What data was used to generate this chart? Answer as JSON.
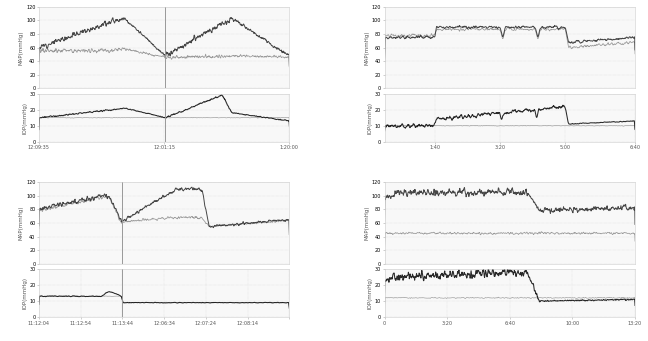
{
  "fig_width": 6.48,
  "fig_height": 3.41,
  "fig_dpi": 100,
  "bg_color": "#ffffff",
  "panel_bg": "#f8f8f8",
  "grid_color": "#d0d0d0",
  "grid_style": ":",
  "dark_line": "#333333",
  "mid_line": "#888888",
  "light_line": "#aaaaaa",
  "iop_dark": "#111111",
  "iop_light": "#888888",
  "ylabel_fontsize": 4,
  "tick_fontsize": 3.5,
  "vline_color": "#999999",
  "vline_lw": 0.7,
  "top_left": {
    "map_ylim": [
      0,
      120
    ],
    "map_yticks": [
      0,
      20,
      40,
      60,
      80,
      100,
      120
    ],
    "iop_ylim": [
      0,
      30
    ],
    "iop_yticks": [
      0,
      10,
      20,
      30
    ],
    "xticks": [
      0.0,
      0.5,
      1.0
    ],
    "xticklabels": [
      "12:09:35",
      "12:01:15",
      "1:20:00"
    ],
    "vline": 0.505,
    "map_ylabel": "MAP(mmHg)",
    "iop_ylabel": "IOP(mmHg)"
  },
  "top_right": {
    "map_ylim": [
      0,
      120
    ],
    "map_yticks": [
      0,
      20,
      40,
      60,
      80,
      100,
      120
    ],
    "iop_ylim": [
      0,
      30
    ],
    "iop_yticks": [
      0,
      10,
      20,
      30
    ],
    "xticks": [
      0.2,
      0.46,
      0.72,
      1.0
    ],
    "xticklabels": [
      "1:40",
      "3:20",
      "5:00",
      "6:40"
    ],
    "vline": null,
    "map_ylabel": "MAP(mmHg)",
    "iop_ylabel": "IOP(mmHg)"
  },
  "bot_left": {
    "map_ylim": [
      0,
      120
    ],
    "map_yticks": [
      0,
      20,
      40,
      60,
      80,
      100,
      120
    ],
    "iop_ylim": [
      0,
      30
    ],
    "iop_yticks": [
      0,
      10,
      20,
      30
    ],
    "xticks": [
      0.0,
      0.167,
      0.333,
      0.5,
      0.667,
      0.833,
      1.0
    ],
    "xticklabels": [
      "11:12:04",
      "11:12:54",
      "11:13:44",
      "12:06:34",
      "12:07:24",
      "12:08:14",
      ""
    ],
    "vline": 0.333,
    "map_ylabel": "MAP(mmHg)",
    "iop_ylabel": "IOP(mmHg)"
  },
  "bot_right": {
    "map_ylim": [
      0,
      120
    ],
    "map_yticks": [
      0,
      20,
      40,
      60,
      80,
      100,
      120
    ],
    "iop_ylim": [
      0,
      30
    ],
    "iop_yticks": [
      0,
      10,
      20,
      30
    ],
    "xticks": [
      0.0,
      0.25,
      0.5,
      0.75,
      1.0
    ],
    "xticklabels": [
      "0",
      "3:20",
      "6:40",
      "10:00",
      "13:20"
    ],
    "vline": null,
    "map_ylabel": "MAP(mmHg)",
    "iop_ylabel": "IOP(mmHg)"
  }
}
